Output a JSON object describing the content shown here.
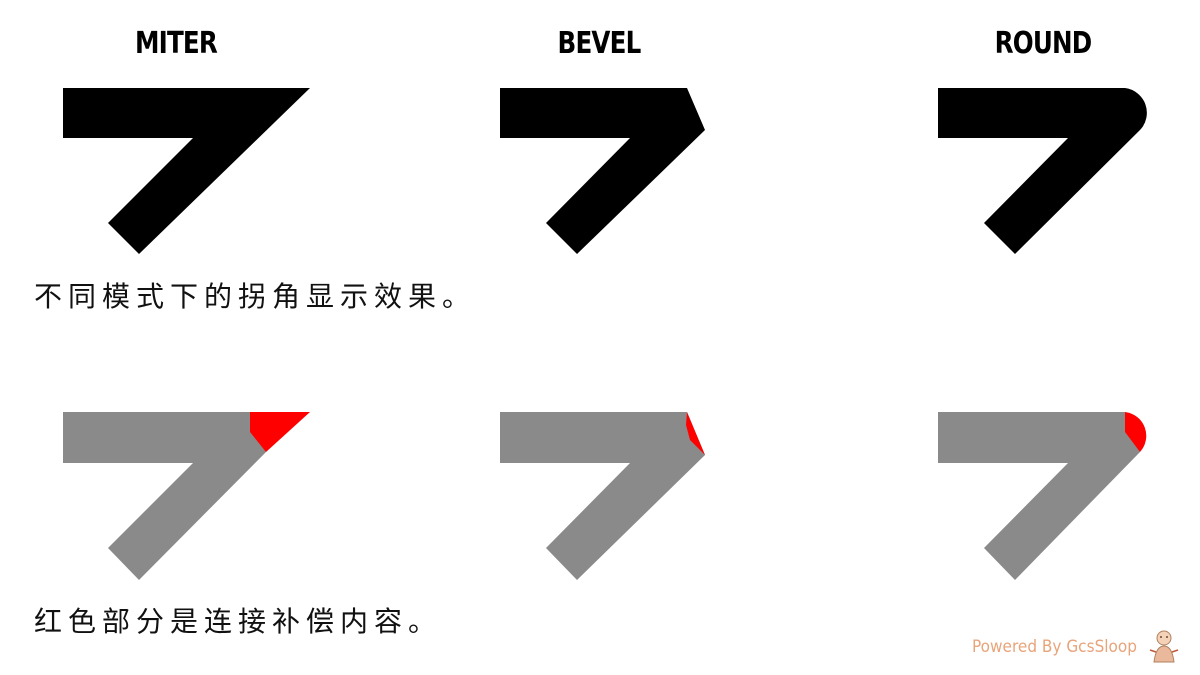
{
  "joins": [
    {
      "key": "miter",
      "label": "MITER"
    },
    {
      "key": "bevel",
      "label": "BEVEL"
    },
    {
      "key": "round",
      "label": "ROUND"
    }
  ],
  "captions": {
    "top": "不同模式下的拐角显示效果。",
    "bottom": "红色部分是连接补偿内容。"
  },
  "colors": {
    "stroke": "#000000",
    "stroke_gray": "#8a8a8a",
    "compensation": "#ff0000",
    "credit": "#e8a47a"
  },
  "credit": "Powered By GcsSloop",
  "icons": {
    "logo": "cartoon-character-logo"
  }
}
